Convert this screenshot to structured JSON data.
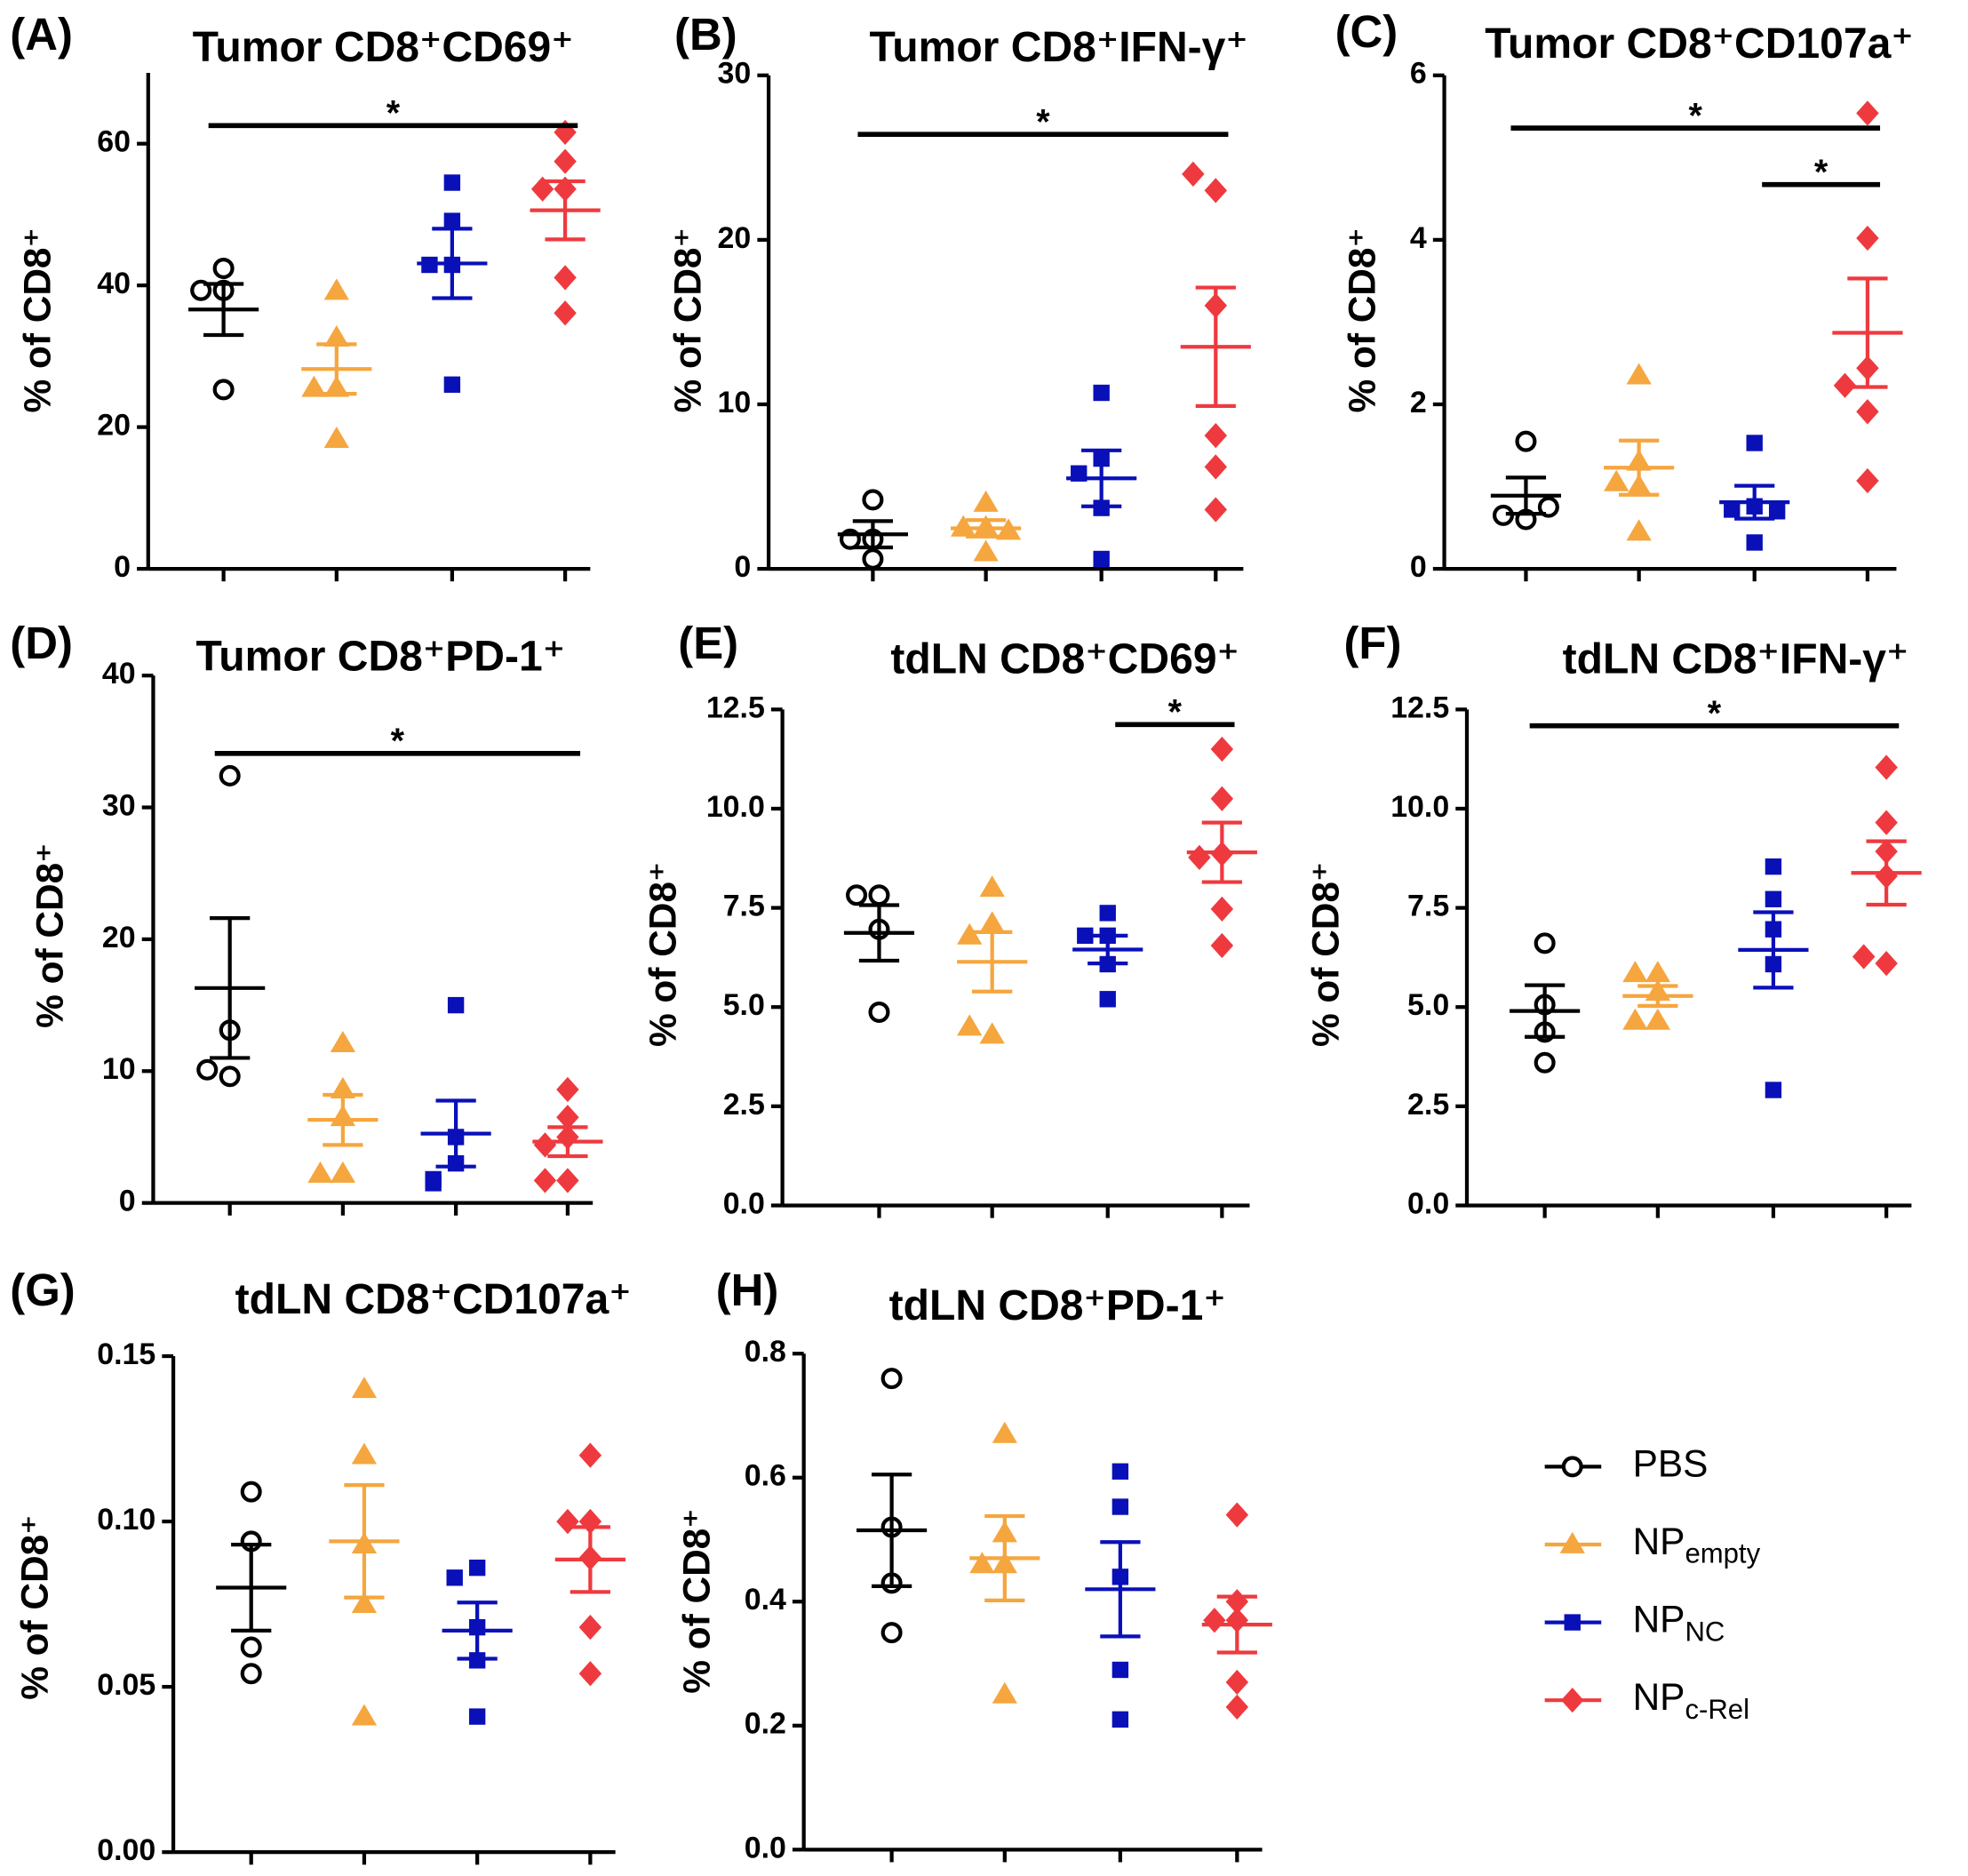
{
  "legend": [
    {
      "name": "PBS",
      "color": "#000000",
      "marker": "circle"
    },
    {
      "name": "NP",
      "subscript": "empty",
      "color": "#f5a63e",
      "marker": "triangle"
    },
    {
      "name": "NP",
      "subscript": "NC",
      "color": "#0a10b8",
      "marker": "square"
    },
    {
      "name": "NP",
      "subscript": "c-Rel",
      "color": "#ee3a3f",
      "marker": "diamond"
    }
  ],
  "chart_data": [
    {
      "type": "scatter",
      "label": "(A)",
      "title": "Tumor CD8⁺CD69⁺",
      "y_label": "% of CD8⁺",
      "ylim": [
        0,
        70
      ],
      "yticks": [
        0,
        20,
        40,
        60
      ],
      "series": [
        {
          "values": [
            39.3,
            42.4,
            39.3,
            25.3
          ],
          "mean": 36.6,
          "sem": 3.6
        },
        {
          "values": [
            39.2,
            32.6,
            25.5,
            25.5,
            18.3
          ],
          "mean": 28.2,
          "sem": 3.5
        },
        {
          "values": [
            54.5,
            49.1,
            42.9,
            42.9,
            26.0
          ],
          "mean": 43.1,
          "sem": 4.9
        },
        {
          "values": [
            61.6,
            57.5,
            53.6,
            53.6,
            41.1,
            36.1
          ],
          "mean": 50.6,
          "sem": 4.1
        }
      ],
      "significance": [
        {
          "from": 0,
          "to": 3,
          "label": "*"
        }
      ]
    },
    {
      "type": "scatter",
      "label": "(B)",
      "title": "Tumor CD8⁺IFN-γ⁺",
      "y_label": "% of CD8⁺",
      "ylim": [
        0,
        30
      ],
      "yticks": [
        0,
        10,
        20,
        30
      ],
      "series": [
        {
          "values": [
            4.2,
            1.8,
            1.8,
            0.6
          ],
          "mean": 2.1,
          "sem": 0.8
        },
        {
          "values": [
            4.0,
            2.5,
            2.5,
            1.0,
            2.3
          ],
          "mean": 2.46,
          "sem": 0.5
        },
        {
          "values": [
            10.7,
            6.7,
            5.8,
            3.7,
            0.6
          ],
          "mean": 5.5,
          "sem": 1.7
        },
        {
          "values": [
            23.0,
            24.0,
            16.0,
            8.1,
            6.2,
            3.6
          ],
          "mean": 13.5,
          "sem": 3.6
        }
      ],
      "significance": [
        {
          "from": 0,
          "to": 3,
          "label": "*"
        }
      ]
    },
    {
      "type": "scatter",
      "label": "(C)",
      "title": "Tumor CD8⁺CD107a⁺",
      "y_label": "% of CD8⁺",
      "ylim": [
        0,
        6
      ],
      "yticks": [
        0,
        2,
        4,
        6
      ],
      "series": [
        {
          "values": [
            1.55,
            0.6,
            0.65,
            0.75
          ],
          "mean": 0.89,
          "sem": 0.22
        },
        {
          "values": [
            2.35,
            1.3,
            1.0,
            1.05,
            0.45
          ],
          "mean": 1.23,
          "sem": 0.33
        },
        {
          "values": [
            1.53,
            0.76,
            0.72,
            0.7,
            0.32
          ],
          "mean": 0.81,
          "sem": 0.2
        },
        {
          "values": [
            5.54,
            4.02,
            2.44,
            2.23,
            1.91,
            1.07
          ],
          "mean": 2.87,
          "sem": 0.66
        }
      ],
      "significance": [
        {
          "from": 0,
          "to": 3,
          "label": "*"
        },
        {
          "from": 2,
          "to": 3,
          "label": "*"
        }
      ]
    },
    {
      "type": "scatter",
      "label": "(D)",
      "title": "Tumor CD8⁺PD-1⁺",
      "y_label": "% of CD8⁺",
      "ylim": [
        0,
        40
      ],
      "yticks": [
        0,
        10,
        20,
        30,
        40
      ],
      "series": [
        {
          "values": [
            32.4,
            13.1,
            9.6,
            10.1
          ],
          "mean": 16.3,
          "sem": 5.3
        },
        {
          "values": [
            12.1,
            8.6,
            6.5,
            2.2,
            2.2
          ],
          "mean": 6.3,
          "sem": 1.9
        },
        {
          "values": [
            15.0,
            5.0,
            3.0,
            1.8,
            1.5
          ],
          "mean": 5.26,
          "sem": 2.5
        },
        {
          "values": [
            8.6,
            6.5,
            5.0,
            1.7,
            1.7,
            4.4
          ],
          "mean": 4.65,
          "sem": 1.1
        }
      ],
      "significance": [
        {
          "from": 0,
          "to": 3,
          "label": "*"
        }
      ]
    },
    {
      "type": "scatter",
      "label": "(E)",
      "title": "tdLN CD8⁺CD69⁺",
      "y_label": "% of CD8⁺",
      "ylim": [
        0,
        12.5
      ],
      "yticks": [
        {
          "value": 0,
          "label": "0.0"
        },
        2.5,
        {
          "value": 5,
          "label": "5.0"
        },
        7.5,
        {
          "value": 10,
          "label": "10.0"
        },
        12.5
      ],
      "series": [
        {
          "values": [
            7.82,
            7.82,
            6.96,
            4.87
          ],
          "mean": 6.87,
          "sem": 0.7
        },
        {
          "values": [
            8.0,
            7.1,
            6.8,
            4.3,
            4.5
          ],
          "mean": 6.14,
          "sem": 0.75
        },
        {
          "values": [
            7.37,
            6.8,
            6.8,
            6.08,
            5.2
          ],
          "mean": 6.45,
          "sem": 0.35
        },
        {
          "values": [
            11.5,
            10.25,
            8.86,
            8.77,
            7.47,
            6.55
          ],
          "mean": 8.9,
          "sem": 0.75
        }
      ],
      "significance": [
        {
          "from": 2,
          "to": 3,
          "label": "*"
        }
      ]
    },
    {
      "type": "scatter",
      "label": "(F)",
      "title": "tdLN CD8⁺IFN-γ⁺",
      "y_label": "% of CD8⁺",
      "ylim": [
        0,
        12.5
      ],
      "yticks": [
        {
          "value": 0,
          "label": "0.0"
        },
        2.5,
        {
          "value": 5,
          "label": "5.0"
        },
        7.5,
        {
          "value": 10,
          "label": "10.0"
        },
        12.5
      ],
      "series": [
        {
          "values": [
            6.61,
            5.06,
            4.37,
            3.6
          ],
          "mean": 4.9,
          "sem": 0.65
        },
        {
          "values": [
            5.85,
            5.85,
            5.38,
            4.65,
            4.65
          ],
          "mean": 5.28,
          "sem": 0.25
        },
        {
          "values": [
            8.54,
            7.72,
            6.96,
            6.08,
            2.91
          ],
          "mean": 6.44,
          "sem": 0.95
        },
        {
          "values": [
            11.04,
            9.65,
            8.92,
            8.3,
            6.1,
            6.27
          ],
          "mean": 8.38,
          "sem": 0.8
        }
      ],
      "significance": [
        {
          "from": 0,
          "to": 3,
          "label": "*"
        }
      ]
    },
    {
      "type": "scatter",
      "label": "(G)",
      "title": "tdLN CD8⁺CD107a⁺",
      "y_label": "% of CD8⁺",
      "ylim": [
        0,
        0.15
      ],
      "yticks": [
        {
          "value": 0,
          "label": "0.00"
        },
        0.05,
        {
          "value": 0.1,
          "label": "0.10"
        },
        0.15
      ],
      "series": [
        {
          "values": [
            0.109,
            0.094,
            0.062,
            0.054
          ],
          "mean": 0.08,
          "sem": 0.013
        },
        {
          "values": [
            0.14,
            0.12,
            0.093,
            0.075,
            0.041
          ],
          "mean": 0.094,
          "sem": 0.017
        },
        {
          "values": [
            0.086,
            0.083,
            0.068,
            0.058,
            0.041
          ],
          "mean": 0.067,
          "sem": 0.0085
        },
        {
          "values": [
            0.12,
            0.1,
            0.1,
            0.089,
            0.068,
            0.054
          ],
          "mean": 0.0885,
          "sem": 0.0098
        }
      ],
      "significance": []
    },
    {
      "type": "scatter",
      "label": "(H)",
      "title": "tdLN CD8⁺PD-1⁺",
      "y_label": "% of CD8⁺",
      "ylim": [
        0,
        0.8
      ],
      "yticks": [
        {
          "value": 0,
          "label": "0.0"
        },
        0.2,
        0.4,
        0.6,
        0.8
      ],
      "series": [
        {
          "values": [
            0.76,
            0.52,
            0.43,
            0.35
          ],
          "mean": 0.515,
          "sem": 0.09
        },
        {
          "values": [
            0.67,
            0.51,
            0.46,
            0.46,
            0.25
          ],
          "mean": 0.47,
          "sem": 0.068
        },
        {
          "values": [
            0.61,
            0.553,
            0.44,
            0.29,
            0.21
          ],
          "mean": 0.42,
          "sem": 0.076
        },
        {
          "values": [
            0.54,
            0.4,
            0.37,
            0.37,
            0.27,
            0.23
          ],
          "mean": 0.363,
          "sem": 0.045
        }
      ],
      "significance": []
    }
  ]
}
